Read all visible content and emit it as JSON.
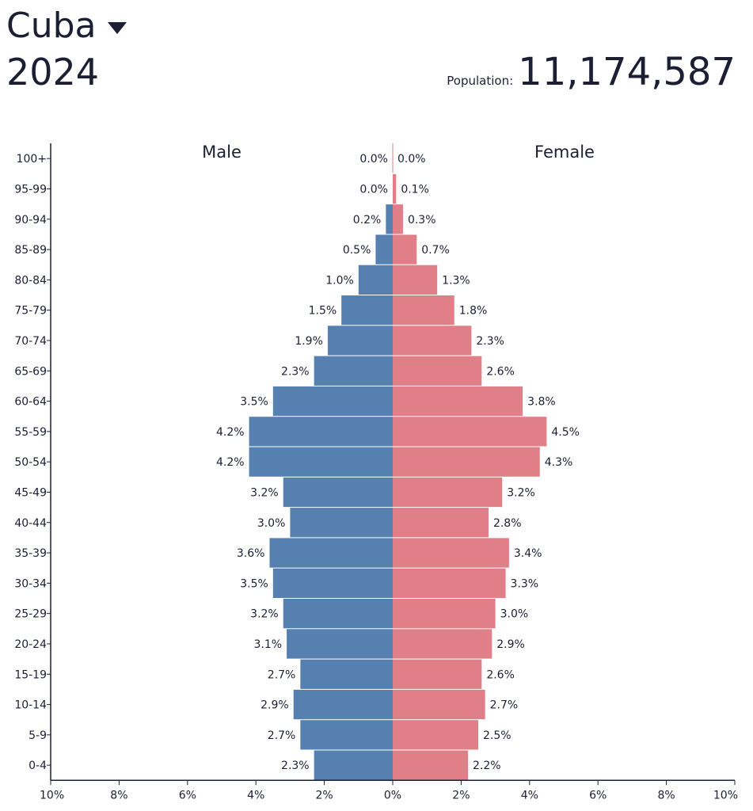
{
  "header": {
    "country": "Cuba",
    "year": "2024",
    "population_label": "Population:",
    "population_value": "11,174,587"
  },
  "icons": {
    "country_dropdown": "chevron-down-icon"
  },
  "colors": {
    "male": "#5680b0",
    "female": "#e07f87",
    "text": "#1c1f33"
  },
  "chart_data": {
    "type": "bar",
    "orientation": "horizontal",
    "layout": "population-pyramid",
    "categories": [
      "100+",
      "95-99",
      "90-94",
      "85-89",
      "80-84",
      "75-79",
      "70-74",
      "65-69",
      "60-64",
      "55-59",
      "50-54",
      "45-49",
      "40-44",
      "35-39",
      "30-34",
      "25-29",
      "20-24",
      "15-19",
      "10-14",
      "5-9",
      "0-4"
    ],
    "series": [
      {
        "name": "Male",
        "values": [
          0.0,
          0.0,
          0.2,
          0.5,
          1.0,
          1.5,
          1.9,
          2.3,
          3.5,
          4.2,
          4.2,
          3.2,
          3.0,
          3.6,
          3.5,
          3.2,
          3.1,
          2.7,
          2.9,
          2.7,
          2.3
        ],
        "labels": [
          "0.0%",
          "0.0%",
          "0.2%",
          "0.5%",
          "1.0%",
          "1.5%",
          "1.9%",
          "2.3%",
          "3.5%",
          "4.2%",
          "4.2%",
          "3.2%",
          "3.0%",
          "3.6%",
          "3.5%",
          "3.2%",
          "3.1%",
          "2.7%",
          "2.9%",
          "2.7%",
          "2.3%"
        ]
      },
      {
        "name": "Female",
        "values": [
          0.0,
          0.1,
          0.3,
          0.7,
          1.3,
          1.8,
          2.3,
          2.6,
          3.8,
          4.5,
          4.3,
          3.2,
          2.8,
          3.4,
          3.3,
          3.0,
          2.9,
          2.6,
          2.7,
          2.5,
          2.2
        ],
        "labels": [
          "0.0%",
          "0.1%",
          "0.3%",
          "0.7%",
          "1.3%",
          "1.8%",
          "2.3%",
          "2.6%",
          "3.8%",
          "4.5%",
          "4.3%",
          "3.2%",
          "2.8%",
          "3.4%",
          "3.3%",
          "3.0%",
          "2.9%",
          "2.6%",
          "2.7%",
          "2.5%",
          "2.2%"
        ]
      }
    ],
    "xlim": [
      -10,
      10
    ],
    "x_ticks": [
      -10,
      -8,
      -6,
      -4,
      -2,
      0,
      2,
      4,
      6,
      8,
      10
    ],
    "x_tick_labels": [
      "10%",
      "8%",
      "6%",
      "4%",
      "2%",
      "0%",
      "2%",
      "4%",
      "6%",
      "8%",
      "10%"
    ],
    "grid": false
  }
}
